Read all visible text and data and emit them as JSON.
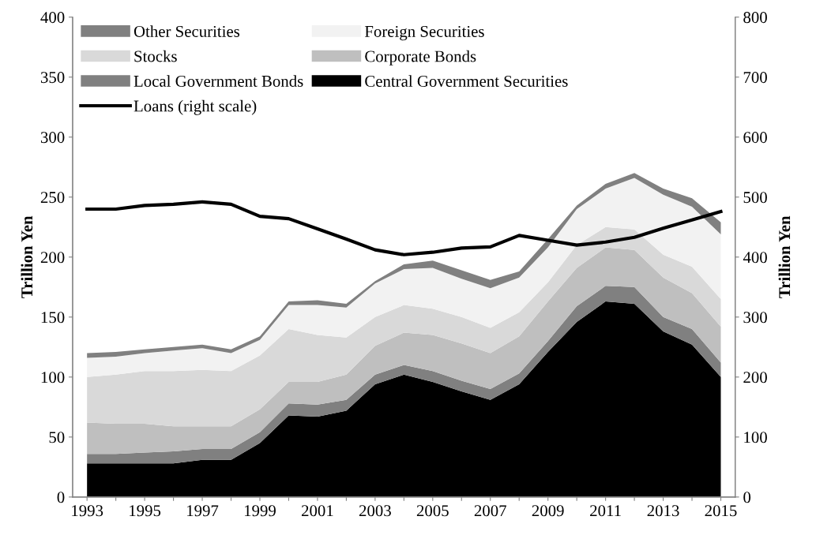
{
  "chart_data": {
    "type": "area",
    "stacked": true,
    "ylabel": "Trillion Yen",
    "y2label": "Trillion Yen",
    "x": [
      1993,
      1994,
      1995,
      1996,
      1997,
      1998,
      1999,
      2000,
      2001,
      2002,
      2003,
      2004,
      2005,
      2006,
      2007,
      2008,
      2009,
      2010,
      2011,
      2012,
      2013,
      2014,
      2015
    ],
    "series": [
      {
        "name": "Central Government Securities",
        "color": "#000000",
        "values": [
          28,
          28,
          28,
          28,
          31,
          31,
          45,
          68,
          67,
          72,
          94,
          102,
          96,
          88,
          81,
          94,
          121,
          146,
          163,
          161,
          138,
          127,
          100
        ]
      },
      {
        "name": "Local Government Bonds",
        "color": "#808080",
        "values": [
          8,
          8,
          9,
          10,
          9,
          9,
          9,
          10,
          10,
          9,
          8,
          8,
          9,
          9,
          9,
          9,
          9,
          13,
          13,
          14,
          12,
          13,
          12
        ]
      },
      {
        "name": "Corporate Bonds",
        "color": "#bfbfbf",
        "values": [
          26,
          25,
          24,
          21,
          19,
          19,
          19,
          18,
          19,
          21,
          24,
          27,
          30,
          31,
          30,
          31,
          33,
          32,
          32,
          31,
          33,
          30,
          30
        ]
      },
      {
        "name": "Stocks",
        "color": "#d9d9d9",
        "values": [
          38,
          41,
          44,
          46,
          47,
          46,
          45,
          44,
          39,
          31,
          24,
          23,
          22,
          22,
          21,
          20,
          16,
          19,
          17,
          17,
          19,
          22,
          23
        ]
      },
      {
        "name": "Foreign Securities",
        "color": "#f2f2f2",
        "values": [
          16,
          15,
          15,
          17,
          18,
          15,
          13,
          20,
          25,
          25,
          28,
          30,
          34,
          32,
          33,
          29,
          29,
          30,
          32,
          43,
          50,
          50,
          54
        ]
      },
      {
        "name": "Other Securities",
        "color": "#808080",
        "values": [
          4,
          4,
          3,
          3,
          3,
          3,
          3,
          3,
          4,
          3,
          2,
          4,
          6,
          7,
          7,
          5,
          7,
          3,
          4,
          4,
          5,
          7,
          10
        ]
      },
      {
        "name": "Loans (right scale)",
        "type": "line",
        "axis": "y2",
        "color": "#000000",
        "values": [
          480,
          480,
          486,
          488,
          492,
          488,
          468,
          464,
          447,
          430,
          412,
          404,
          408,
          415,
          417,
          436,
          428,
          420,
          425,
          433,
          448,
          462,
          476
        ]
      }
    ],
    "xlim": [
      1992.5,
      2015.5
    ],
    "xticks": [
      1993,
      {
        "value": 1994,
        "label": null
      },
      1995,
      {
        "value": 1996,
        "label": null
      },
      1997,
      {
        "value": 1998,
        "label": null
      },
      1999,
      {
        "value": 2000,
        "label": null
      },
      2001,
      {
        "value": 2002,
        "label": null
      },
      2003,
      {
        "value": 2004,
        "label": null
      },
      2005,
      {
        "value": 2006,
        "label": null
      },
      2007,
      {
        "value": 2008,
        "label": null
      },
      2009,
      {
        "value": 2010,
        "label": null
      },
      2011,
      {
        "value": 2012,
        "label": null
      },
      2013,
      {
        "value": 2014,
        "label": null
      },
      2015
    ],
    "ylim": [
      0,
      400
    ],
    "yticks": [
      0,
      50,
      100,
      150,
      200,
      250,
      300,
      350,
      400
    ],
    "y2lim": [
      0,
      800
    ],
    "y2ticks": [
      0,
      100,
      200,
      300,
      400,
      500,
      600,
      700,
      800
    ],
    "grid": false,
    "legend": "top left"
  }
}
